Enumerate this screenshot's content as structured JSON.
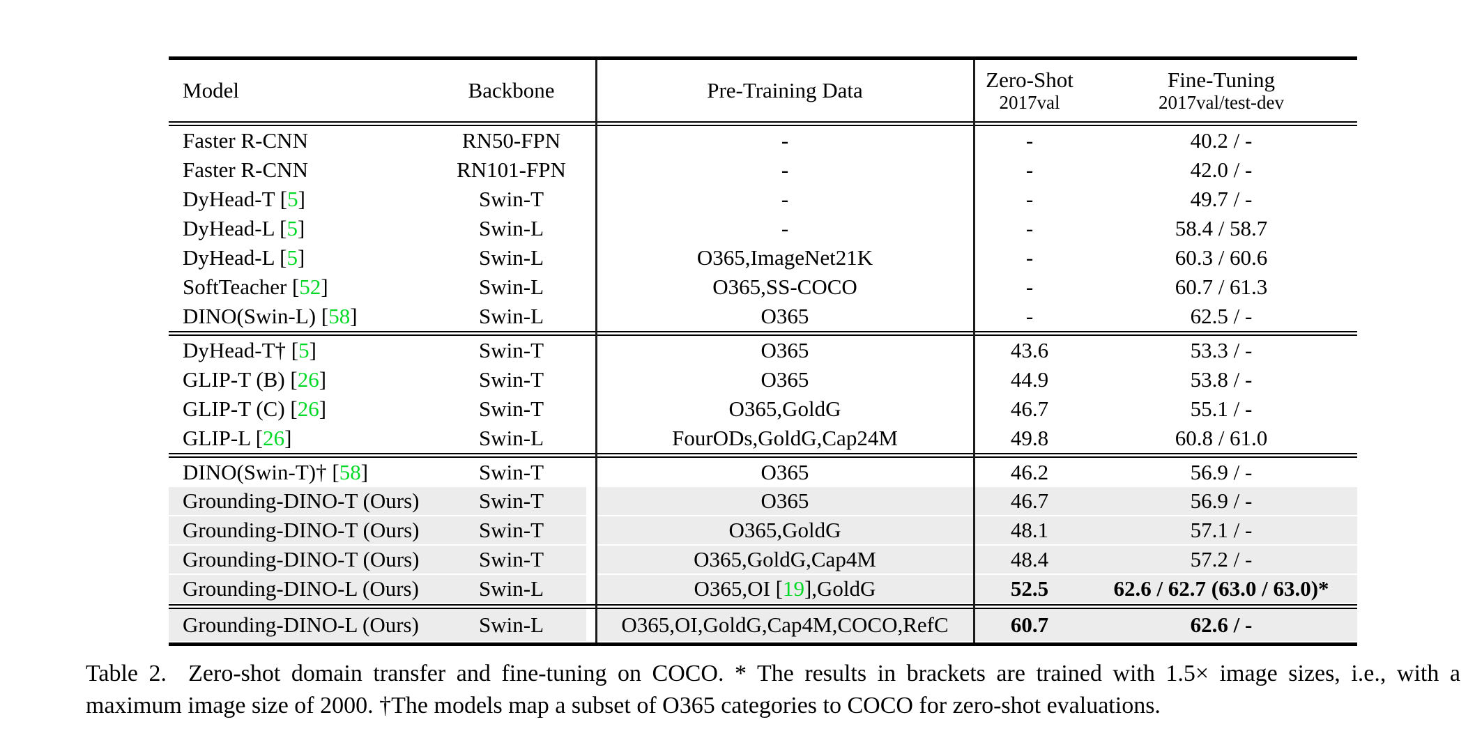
{
  "table": {
    "header": {
      "model": "Model",
      "backbone": "Backbone",
      "pretraining": "Pre-Training Data",
      "zeroshot_line1": "Zero-Shot",
      "zeroshot_line2": "2017val",
      "finetuning_line1": "Fine-Tuning",
      "finetuning_line2": "2017val/test-dev"
    },
    "rows": [
      {
        "model_pre": "Faster R-CNN",
        "model_cite": "",
        "model_post": "",
        "backbone": "RN50-FPN",
        "pre_pre": "-",
        "pre_cite": "",
        "pre_post": "",
        "zeroshot": "-",
        "finetuning": "40.2 / -"
      },
      {
        "model_pre": "Faster R-CNN",
        "model_cite": "",
        "model_post": "",
        "backbone": "RN101-FPN",
        "pre_pre": "-",
        "pre_cite": "",
        "pre_post": "",
        "zeroshot": "-",
        "finetuning": "42.0 / -"
      },
      {
        "model_pre": "DyHead-T [",
        "model_cite": "5",
        "model_post": "]",
        "backbone": "Swin-T",
        "pre_pre": "-",
        "pre_cite": "",
        "pre_post": "",
        "zeroshot": "-",
        "finetuning": "49.7 / -"
      },
      {
        "model_pre": "DyHead-L [",
        "model_cite": "5",
        "model_post": "]",
        "backbone": "Swin-L",
        "pre_pre": "-",
        "pre_cite": "",
        "pre_post": "",
        "zeroshot": "-",
        "finetuning": "58.4 / 58.7"
      },
      {
        "model_pre": "DyHead-L [",
        "model_cite": "5",
        "model_post": "]",
        "backbone": "Swin-L",
        "pre_pre": "O365,ImageNet21K",
        "pre_cite": "",
        "pre_post": "",
        "zeroshot": "-",
        "finetuning": "60.3 / 60.6"
      },
      {
        "model_pre": "SoftTeacher [",
        "model_cite": "52",
        "model_post": "]",
        "backbone": "Swin-L",
        "pre_pre": "O365,SS-COCO",
        "pre_cite": "",
        "pre_post": "",
        "zeroshot": "-",
        "finetuning": "60.7 / 61.3"
      },
      {
        "model_pre": "DINO(Swin-L) [",
        "model_cite": "58",
        "model_post": "]",
        "backbone": "Swin-L",
        "pre_pre": "O365",
        "pre_cite": "",
        "pre_post": "",
        "zeroshot": "-",
        "finetuning": "62.5 / -"
      },
      {
        "model_pre": "DyHead-T† [",
        "model_cite": "5",
        "model_post": "]",
        "backbone": "Swin-T",
        "pre_pre": "O365",
        "pre_cite": "",
        "pre_post": "",
        "zeroshot": "43.6",
        "finetuning": "53.3 / -"
      },
      {
        "model_pre": "GLIP-T (B) [",
        "model_cite": "26",
        "model_post": "]",
        "backbone": "Swin-T",
        "pre_pre": "O365",
        "pre_cite": "",
        "pre_post": "",
        "zeroshot": "44.9",
        "finetuning": "53.8 / -"
      },
      {
        "model_pre": "GLIP-T (C) [",
        "model_cite": "26",
        "model_post": "]",
        "backbone": "Swin-T",
        "pre_pre": "O365,GoldG",
        "pre_cite": "",
        "pre_post": "",
        "zeroshot": "46.7",
        "finetuning": "55.1 / -"
      },
      {
        "model_pre": "GLIP-L [",
        "model_cite": "26",
        "model_post": "]",
        "backbone": "Swin-L",
        "pre_pre": "FourODs,GoldG,Cap24M",
        "pre_cite": "",
        "pre_post": "",
        "zeroshot": "49.8",
        "finetuning": "60.8 / 61.0"
      },
      {
        "model_pre": "DINO(Swin-T)† [",
        "model_cite": "58",
        "model_post": "]",
        "backbone": "Swin-T",
        "pre_pre": "O365",
        "pre_cite": "",
        "pre_post": "",
        "zeroshot": "46.2",
        "finetuning": "56.9 / -"
      },
      {
        "model_pre": "Grounding-DINO-T (Ours)",
        "model_cite": "",
        "model_post": "",
        "backbone": "Swin-T",
        "pre_pre": "O365",
        "pre_cite": "",
        "pre_post": "",
        "zeroshot": "46.7",
        "finetuning": "56.9 / -"
      },
      {
        "model_pre": "Grounding-DINO-T (Ours)",
        "model_cite": "",
        "model_post": "",
        "backbone": "Swin-T",
        "pre_pre": "O365,GoldG",
        "pre_cite": "",
        "pre_post": "",
        "zeroshot": "48.1",
        "finetuning": "57.1 / -"
      },
      {
        "model_pre": "Grounding-DINO-T (Ours)",
        "model_cite": "",
        "model_post": "",
        "backbone": "Swin-T",
        "pre_pre": "O365,GoldG,Cap4M",
        "pre_cite": "",
        "pre_post": "",
        "zeroshot": "48.4",
        "finetuning": "57.2 / -"
      },
      {
        "model_pre": "Grounding-DINO-L (Ours)",
        "model_cite": "",
        "model_post": "",
        "backbone": "Swin-L",
        "pre_pre": "O365,OI [",
        "pre_cite": "19",
        "pre_post": "],GoldG",
        "zeroshot": "52.5",
        "finetuning": "62.6 / 62.7 (63.0 / 63.0)*"
      },
      {
        "model_pre": "Grounding-DINO-L (Ours)",
        "model_cite": "",
        "model_post": "",
        "backbone": "Swin-L",
        "pre_pre": "O365,OI,GoldG,Cap4M,COCO,RefC",
        "pre_cite": "",
        "pre_post": "",
        "zeroshot": "60.7",
        "finetuning": "62.6 / -"
      }
    ]
  },
  "caption": {
    "line1": "Table 2.  Zero-shot domain transfer and fine-tuning on COCO. * The results in brackets are trained with 1.5× image sizes, i.e., with a",
    "line2": "maximum image size of 2000. †The models map a subset of O365 categories to COCO for zero-shot evaluations."
  },
  "colors": {
    "citation_green": "#00d926",
    "row_shade": "#ececec"
  }
}
